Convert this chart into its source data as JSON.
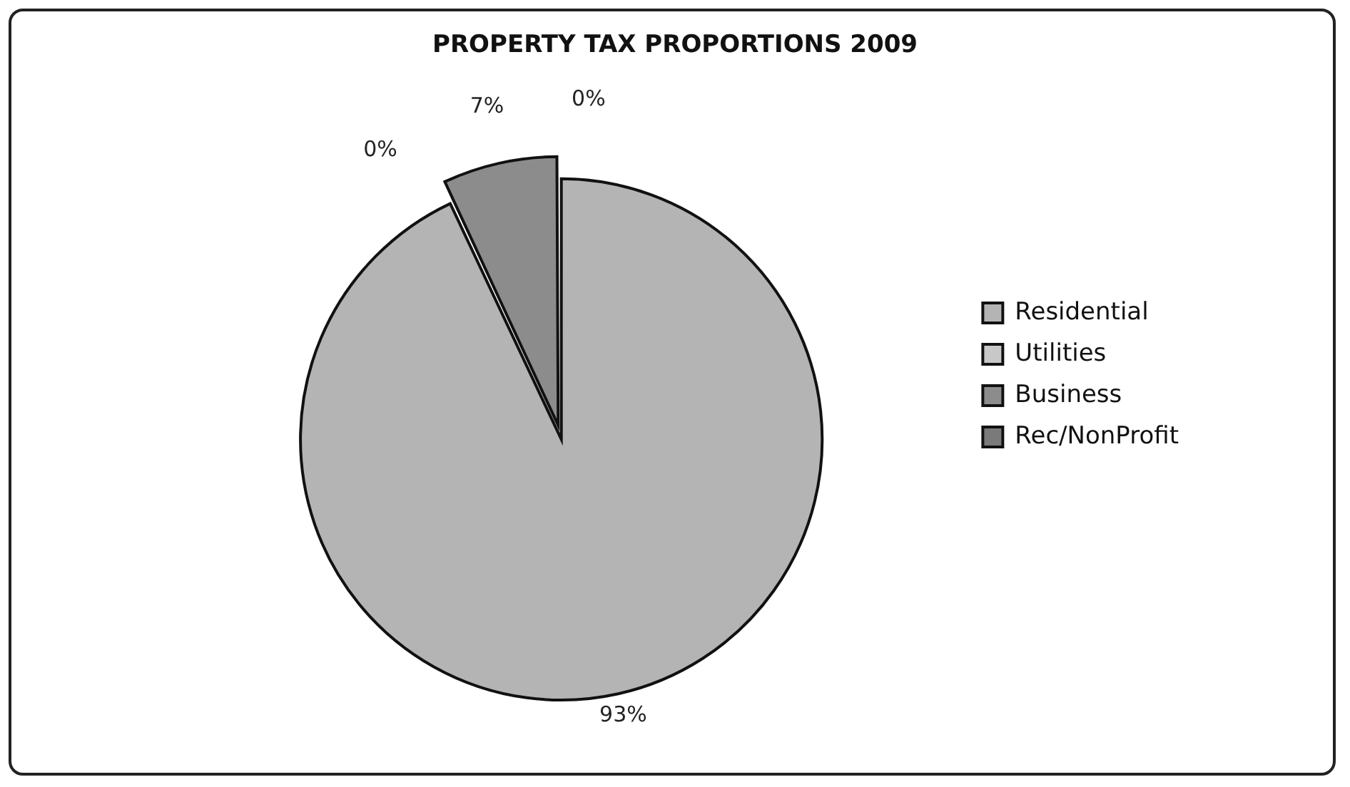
{
  "chart_data": {
    "type": "pie",
    "title": "PROPERTY TAX PROPORTIONS 2009",
    "categories": [
      "Residential",
      "Utilities",
      "Business",
      "Rec/NonProfit"
    ],
    "values": [
      93,
      0,
      7,
      0
    ],
    "colors": [
      "#b4b4b4",
      "#c8c8c8",
      "#8c8c8c",
      "#7a7a7a"
    ],
    "value_labels": [
      "93%",
      "0%",
      "7%",
      "0%"
    ],
    "legend": "right"
  }
}
